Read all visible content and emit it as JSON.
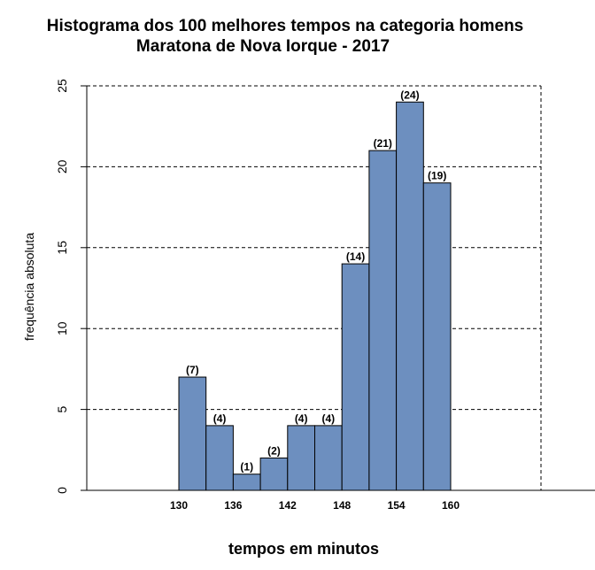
{
  "chart_data": {
    "type": "bar",
    "title_line1": "Histograma dos 100 melhores tempos na categoria homens",
    "title_line2": "Maratona de Nova Iorque - 2017",
    "xlabel": "tempos em minutos",
    "ylabel": "frequência absoluta",
    "bin_edges": [
      130,
      133,
      136,
      139,
      142,
      145,
      148,
      151,
      154,
      157,
      160
    ],
    "values": [
      7,
      4,
      1,
      2,
      4,
      4,
      14,
      21,
      24,
      19
    ],
    "data_labels": [
      "(7)",
      "(4)",
      "(1)",
      "(2)",
      "(4)",
      "(4)",
      "(14)",
      "(21)",
      "(24)",
      "(19)"
    ],
    "x_ticks": [
      130,
      136,
      142,
      148,
      154,
      160
    ],
    "y_ticks": [
      0,
      5,
      10,
      15,
      20,
      25
    ],
    "ylim": [
      0,
      25
    ],
    "grid": "dashed horizontal at y ticks",
    "bar_color": "#6d8fbf",
    "bar_border": "#000000"
  }
}
